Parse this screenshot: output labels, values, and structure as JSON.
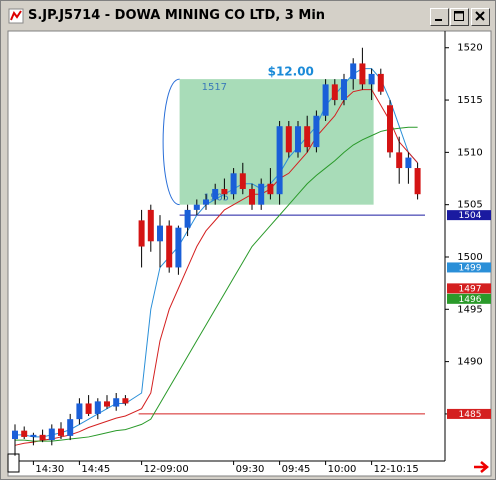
{
  "window_title": "S.JP.J5714 - DOWA MINING CO LTD, 3 Min",
  "chart_data": {
    "type": "candlestick",
    "categories": [
      null,
      null,
      "14:30",
      null,
      null,
      null,
      null,
      "14:45",
      null,
      null,
      null,
      null,
      null,
      "12-09:00",
      null,
      null,
      null,
      null,
      null,
      null,
      null,
      null,
      null,
      "09:30",
      null,
      null,
      null,
      null,
      "09:45",
      null,
      null,
      null,
      null,
      "10:00",
      null,
      null,
      null,
      null,
      "12-10:15",
      null,
      null,
      null,
      null,
      null
    ],
    "open": [
      1482.6,
      1483.4,
      1482.8,
      1483,
      1482.5,
      1483.6,
      1482.9,
      1484.5,
      1486,
      1485,
      1486.2,
      1485.7,
      1486.5,
      1503.5,
      1504.5,
      1501.5,
      1503,
      1499,
      1502.8,
      1504.5,
      1505,
      1505.5,
      1506.5,
      1506,
      1508,
      1506.5,
      1505,
      1507,
      1506,
      1512.5,
      1510,
      1512.5,
      1510.5,
      1513.5,
      1516.5,
      1515,
      1517,
      1518.5,
      1516.5,
      1517.5,
      1514.5,
      1510,
      1508.5,
      1508.5
    ],
    "high": [
      1484,
      1483.8,
      1483.2,
      1483.5,
      1484,
      1484.2,
      1485,
      1486.5,
      1486.8,
      1486.5,
      1486.8,
      1487,
      1486.8,
      1504.5,
      1505,
      1504,
      1503.5,
      1503,
      1505,
      1505.5,
      1506,
      1507,
      1507.5,
      1508.5,
      1509,
      1507,
      1507.5,
      1508.5,
      1513,
      1513,
      1513,
      1513.5,
      1514,
      1517,
      1517,
      1517.5,
      1519,
      1520,
      1518,
      1518,
      1515,
      1511.5,
      1510,
      1509
    ],
    "low": [
      1481,
      1482.6,
      1482,
      1482.3,
      1482,
      1482.6,
      1482.5,
      1484,
      1484.8,
      1484.5,
      1485.5,
      1485.3,
      1485.8,
      1499,
      1500.5,
      1499,
      1498.5,
      1498.3,
      1502,
      1504,
      1504.5,
      1505,
      1505.5,
      1505.5,
      1506,
      1504.5,
      1504.5,
      1505.5,
      1505,
      1509.5,
      1509.5,
      1510,
      1510,
      1513,
      1514.5,
      1514.5,
      1516,
      1516,
      1515,
      1515.5,
      1509.5,
      1507,
      1507,
      1505.5
    ],
    "close": [
      1483.4,
      1482.8,
      1483,
      1482.5,
      1483.6,
      1482.9,
      1484.5,
      1486,
      1485,
      1486.2,
      1485.7,
      1486.5,
      1486,
      1501,
      1501.5,
      1503,
      1499,
      1502.8,
      1504.5,
      1505,
      1505.5,
      1506.5,
      1506,
      1508,
      1506.5,
      1505,
      1507,
      1506,
      1512.5,
      1510,
      1512.5,
      1510.5,
      1513.5,
      1516.5,
      1515,
      1517,
      1518.5,
      1516.5,
      1517.5,
      1515.8,
      1510,
      1508.5,
      1509.5,
      1506
    ],
    "up_color": "#1a5fd8",
    "down_color": "#d41414",
    "series": [
      {
        "color": "#2a8fd8",
        "values": [
          1483,
          1483,
          1482.8,
          1482.8,
          1483,
          1483.2,
          1483.5,
          1484,
          1484.5,
          1485,
          1485.5,
          1486,
          1486,
          1487,
          1495,
          1499,
          1500,
          1501,
          1502.5,
          1504,
          1505,
          1505.5,
          1506,
          1506.5,
          1507,
          1507,
          1506.5,
          1507,
          1508,
          1509.5,
          1510.5,
          1511.5,
          1512.5,
          1514.5,
          1515.5,
          1516.5,
          1517.5,
          1518,
          1518,
          1517,
          1515,
          1512.5,
          1510,
          1509
        ]
      },
      {
        "color": "#d42020",
        "values": [
          1482,
          1482.2,
          1482.3,
          1482.5,
          1482.6,
          1482.8,
          1483,
          1483.3,
          1483.7,
          1484,
          1484.3,
          1484.6,
          1484.8,
          1485.5,
          1487,
          1492,
          1495,
          1497,
          1499,
          1501,
          1502.5,
          1503.5,
          1504.5,
          1505,
          1505.5,
          1506,
          1506,
          1506.5,
          1507.5,
          1508,
          1509,
          1510,
          1511.5,
          1512.5,
          1513.5,
          1515,
          1515.8,
          1516,
          1516,
          1514.5,
          1513,
          1511,
          1510,
          1509
        ]
      },
      {
        "color": "#2a9a2a",
        "values": [
          1482.5,
          1482.5,
          1482.4,
          1482.4,
          1482.4,
          1482.5,
          1482.6,
          1482.7,
          1482.8,
          1483,
          1483.2,
          1483.4,
          1483.5,
          1484,
          1484.5,
          1486,
          1487.5,
          1489,
          1490.5,
          1492,
          1493.5,
          1495,
          1496.5,
          1498,
          1499.5,
          1501,
          1502,
          1503,
          1504,
          1505,
          1506,
          1507,
          1507.8,
          1508.5,
          1509.2,
          1510,
          1510.7,
          1511.2,
          1511.6,
          1512,
          1512.2,
          1512.3,
          1512.4,
          1512.4
        ]
      }
    ],
    "box": {
      "top": 1517,
      "bottom": 1505,
      "label": "$12.00",
      "color": "#9fd8b0"
    },
    "price_tags": [
      {
        "value": 1504,
        "color": "#1a1aa0",
        "line": true
      },
      {
        "value": 1499,
        "color": "#2a8fd8",
        "line": false
      },
      {
        "value": 1497,
        "color": "#d42020",
        "line": false
      },
      {
        "value": 1496,
        "color": "#2a9a2a",
        "line": false
      },
      {
        "value": 1485,
        "color": "#d42020",
        "line": true
      }
    ],
    "ylim": [
      1480.5,
      1521.6
    ],
    "yticks": [
      1485,
      1490,
      1495,
      1500,
      1505,
      1510,
      1515,
      1520
    ]
  }
}
